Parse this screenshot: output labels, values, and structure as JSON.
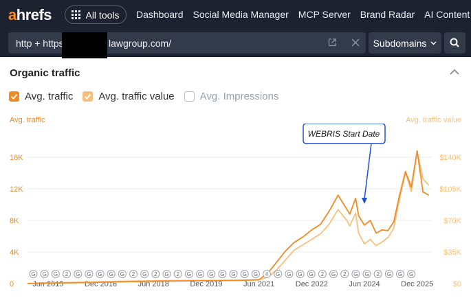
{
  "header": {
    "logo_accent": "a",
    "logo_rest": "hrefs",
    "all_tools_label": "All tools",
    "nav": [
      "Dashboard",
      "Social Media Manager",
      "MCP Server",
      "Brand Radar",
      "AI Content Help"
    ]
  },
  "urlbar": {
    "url_prefix": "http + https",
    "url_suffix": "lawgroup.com/",
    "mode_label": "Subdomains"
  },
  "panel": {
    "title": "Organic traffic",
    "checks": [
      {
        "label": "Avg. traffic",
        "checked": true
      },
      {
        "label": "Avg. traffic value",
        "checked": true
      },
      {
        "label": "Avg. Impressions",
        "checked": false
      }
    ]
  },
  "colors": {
    "traffic": "#f08a24",
    "traffic_value": "#f7c07a",
    "annotation": "#1f4fd1",
    "topbar": "#1c2230"
  },
  "chart_data": {
    "type": "line",
    "left_axis_title": "Avg. traffic",
    "right_axis_title": "Avg. traffic value",
    "left_ticks": [
      "0",
      "4K",
      "8K",
      "12K",
      "16K"
    ],
    "right_ticks": [
      "$0",
      "$35K",
      "$70K",
      "$105K",
      "$140K"
    ],
    "ylim_left": [
      0,
      18000
    ],
    "ylim_right": [
      0,
      157500
    ],
    "x_ticks": [
      "Jun 2015",
      "Dec 2016",
      "Jun 2018",
      "Dec 2019",
      "Jun 2021",
      "Dec 2022",
      "Jun 2024",
      "Dec 2025"
    ],
    "x_range": [
      "2014-11",
      "2026-05"
    ],
    "callout": {
      "label": "WEBRIS Start Date",
      "date": "2024-06"
    },
    "event_markers": [
      "G",
      "G",
      "G",
      "2",
      "G",
      "G",
      "G",
      "G",
      "G",
      "2",
      "G",
      "2",
      "G",
      "2",
      "G",
      "G",
      "G",
      "G",
      "G",
      "G",
      "G",
      "4",
      "G",
      "G",
      "G",
      "G",
      "2",
      "G",
      "2",
      "G",
      "G",
      "2",
      "G",
      "G",
      "G"
    ],
    "series": [
      {
        "name": "Avg. traffic",
        "points": [
          [
            "2014-11",
            0
          ],
          [
            "2015-06",
            60
          ],
          [
            "2016-06",
            120
          ],
          [
            "2017-06",
            220
          ],
          [
            "2018-06",
            300
          ],
          [
            "2019-06",
            350
          ],
          [
            "2020-06",
            380
          ],
          [
            "2021-01",
            420
          ],
          [
            "2021-06",
            500
          ],
          [
            "2021-09",
            1300
          ],
          [
            "2021-12",
            2700
          ],
          [
            "2022-03",
            4100
          ],
          [
            "2022-06",
            5200
          ],
          [
            "2022-09",
            5900
          ],
          [
            "2022-12",
            6800
          ],
          [
            "2023-03",
            7500
          ],
          [
            "2023-06",
            9200
          ],
          [
            "2023-09",
            11200
          ],
          [
            "2023-12",
            9400
          ],
          [
            "2024-01",
            8800
          ],
          [
            "2024-03",
            10800
          ],
          [
            "2024-04",
            8600
          ],
          [
            "2024-06",
            7400
          ],
          [
            "2024-08",
            8000
          ],
          [
            "2024-10",
            6400
          ],
          [
            "2024-12",
            6800
          ],
          [
            "2025-02",
            6700
          ],
          [
            "2025-04",
            7800
          ],
          [
            "2025-06",
            11200
          ],
          [
            "2025-08",
            14200
          ],
          [
            "2025-10",
            12200
          ],
          [
            "2025-12",
            16800
          ],
          [
            "2026-02",
            11600
          ],
          [
            "2026-04",
            11200
          ]
        ]
      },
      {
        "name": "Avg. traffic value",
        "points": [
          [
            "2014-11",
            0
          ],
          [
            "2015-06",
            800
          ],
          [
            "2016-06",
            1500
          ],
          [
            "2017-06",
            2500
          ],
          [
            "2018-06",
            3200
          ],
          [
            "2019-06",
            3500
          ],
          [
            "2020-06",
            3600
          ],
          [
            "2021-01",
            3800
          ],
          [
            "2021-06",
            4000
          ],
          [
            "2021-09",
            7000
          ],
          [
            "2021-12",
            15000
          ],
          [
            "2022-03",
            26000
          ],
          [
            "2022-06",
            37000
          ],
          [
            "2022-09",
            43000
          ],
          [
            "2022-12",
            49000
          ],
          [
            "2023-03",
            55000
          ],
          [
            "2023-06",
            66000
          ],
          [
            "2023-09",
            82000
          ],
          [
            "2023-12",
            70000
          ],
          [
            "2024-01",
            64000
          ],
          [
            "2024-03",
            78000
          ],
          [
            "2024-04",
            56000
          ],
          [
            "2024-06",
            44000
          ],
          [
            "2024-08",
            49000
          ],
          [
            "2024-10",
            42000
          ],
          [
            "2024-12",
            46000
          ],
          [
            "2025-02",
            51000
          ],
          [
            "2025-04",
            61000
          ],
          [
            "2025-06",
            94000
          ],
          [
            "2025-08",
            123000
          ],
          [
            "2025-10",
            102000
          ],
          [
            "2025-12",
            147000
          ],
          [
            "2026-02",
            116000
          ],
          [
            "2026-04",
            109000
          ]
        ]
      }
    ]
  }
}
